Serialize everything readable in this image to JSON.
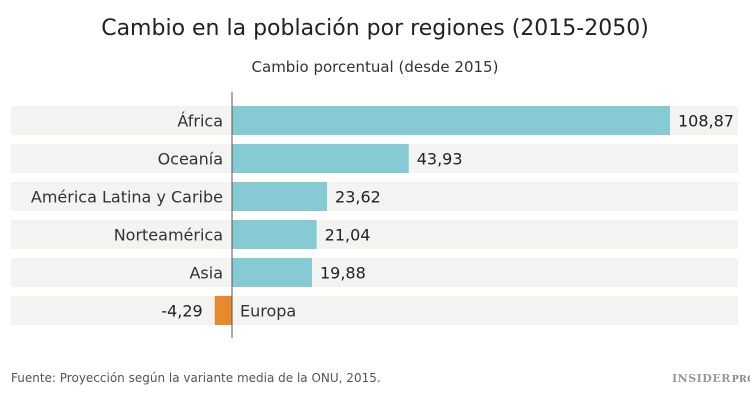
{
  "chart_data": {
    "type": "bar",
    "orientation": "horizontal",
    "title": "Cambio en la población por regiones (2015-2050)",
    "subtitle": "Cambio porcentual (desde 2015)",
    "categories": [
      "África",
      "Oceanía",
      "América Latina y Caribe",
      "Norteamérica",
      "Asia",
      "Europa"
    ],
    "values": [
      108.87,
      43.93,
      23.62,
      21.04,
      19.88,
      -4.29
    ],
    "value_labels": [
      "108,87",
      "43,93",
      "23,62",
      "21,04",
      "19,88",
      "-4,29"
    ],
    "colors": {
      "positive": "#86cad3",
      "negative": "#e8892b",
      "band": "#f3f3f1",
      "axis": "#555555"
    },
    "grid": false
  },
  "footer": {
    "source": "Fuente: Proyección según la variante media de la ONU, 2015.",
    "logo": "INSIDER",
    "logo_suffix": "PRO"
  }
}
